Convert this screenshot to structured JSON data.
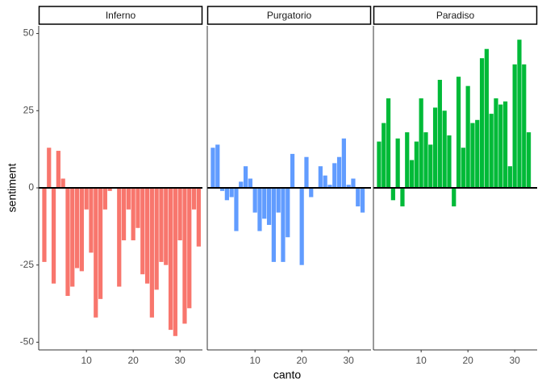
{
  "chart_data": [
    {
      "type": "bar",
      "title": "Inferno",
      "color": "#F8766D",
      "y_label": "sentiment",
      "x": [
        1,
        2,
        3,
        4,
        5,
        6,
        7,
        8,
        9,
        10,
        11,
        12,
        13,
        14,
        15,
        16,
        17,
        18,
        19,
        20,
        21,
        22,
        23,
        24,
        25,
        26,
        27,
        28,
        29,
        30,
        31,
        32,
        33,
        34
      ],
      "values": [
        -24,
        13,
        -31,
        12,
        3,
        -35,
        -32,
        -26,
        -27,
        -7,
        -21,
        -42,
        -36,
        -7,
        -1,
        0,
        -32,
        -17,
        -7,
        -17,
        -13,
        -28,
        -31,
        -42,
        -33,
        -24,
        -25,
        -46,
        -48,
        -17,
        -44,
        -39,
        -7,
        -19
      ],
      "xlim": [
        -0.2,
        34.8
      ],
      "xticks": [
        10,
        20,
        30
      ],
      "ylim": [
        -52.5,
        52.5
      ],
      "yticks": [
        -50,
        -25,
        0,
        25,
        50
      ]
    },
    {
      "type": "bar",
      "title": "Purgatorio",
      "color": "#619CFF",
      "x_label": "canto",
      "x": [
        1,
        2,
        3,
        4,
        5,
        6,
        7,
        8,
        9,
        10,
        11,
        12,
        13,
        14,
        15,
        16,
        17,
        18,
        19,
        20,
        21,
        22,
        23,
        24,
        25,
        26,
        27,
        28,
        29,
        30,
        31,
        32,
        33
      ],
      "values": [
        13,
        14,
        -1,
        -4,
        -3,
        -14,
        2,
        7,
        3,
        -8,
        -14,
        -10,
        -12,
        -24,
        -8,
        -24,
        -16,
        11,
        0,
        -25,
        10,
        -3,
        0,
        7,
        4,
        1,
        8,
        10,
        16,
        1,
        3,
        -6,
        -8
      ],
      "xlim": [
        -0.2,
        34.8
      ],
      "xticks": [
        10,
        20,
        30
      ]
    },
    {
      "type": "bar",
      "title": "Paradiso",
      "color": "#00BA38",
      "x": [
        1,
        2,
        3,
        4,
        5,
        6,
        7,
        8,
        9,
        10,
        11,
        12,
        13,
        14,
        15,
        16,
        17,
        18,
        19,
        20,
        21,
        22,
        23,
        24,
        25,
        26,
        27,
        28,
        29,
        30,
        31,
        32,
        33
      ],
      "values": [
        15,
        21,
        29,
        -4,
        16,
        -6,
        18,
        9,
        15,
        29,
        18,
        14,
        26,
        35,
        25,
        17,
        -6,
        36,
        13,
        33,
        21,
        22,
        42,
        45,
        24,
        29,
        27,
        28,
        7,
        40,
        48,
        40,
        18
      ],
      "xlim": [
        -0.2,
        34.8
      ],
      "xticks": [
        10,
        20,
        30
      ]
    }
  ]
}
